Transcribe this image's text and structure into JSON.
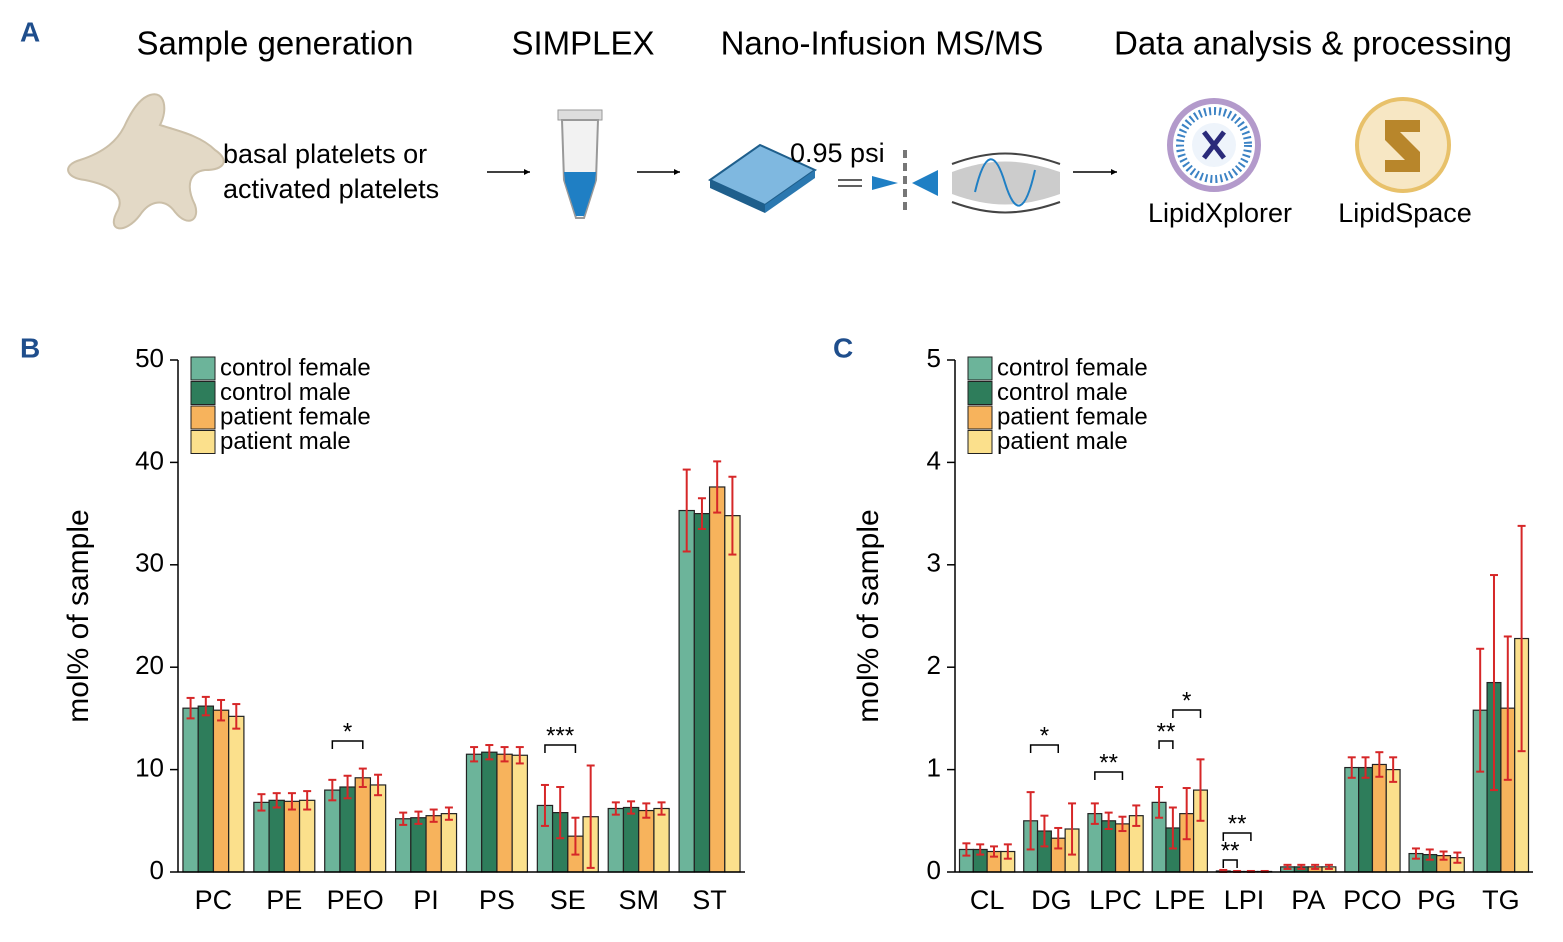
{
  "panel_a": {
    "label": "A",
    "steps": [
      "Sample generation",
      "SIMPLEX",
      "Nano-Infusion MS/MS",
      "Data analysis & processing"
    ],
    "sample_text": [
      "basal platelets or",
      "activated platelets"
    ],
    "pressure": "0.95 psi",
    "tools": [
      "LipidXplorer",
      "LipidSpace"
    ]
  },
  "chart_data": [
    {
      "type": "bar",
      "label": "B",
      "ylabel": "mol% of sample",
      "categories": [
        "PC",
        "PE",
        "PEO",
        "PI",
        "PS",
        "SE",
        "SM",
        "ST"
      ],
      "series": [
        {
          "name": "control female",
          "color": "#6cb49a",
          "values": [
            16,
            6.8,
            8.0,
            5.2,
            11.5,
            6.5,
            6.2,
            35.3
          ],
          "errors": [
            1.0,
            0.8,
            1.0,
            0.6,
            0.7,
            2.0,
            0.6,
            4.0
          ]
        },
        {
          "name": "control male",
          "color": "#2e7d5b",
          "values": [
            16.2,
            7.0,
            8.3,
            5.3,
            11.7,
            5.8,
            6.3,
            35.0
          ],
          "errors": [
            0.9,
            0.7,
            1.1,
            0.6,
            0.7,
            2.5,
            0.6,
            1.5
          ]
        },
        {
          "name": "patient female",
          "color": "#f7b35c",
          "values": [
            15.8,
            6.9,
            9.2,
            5.5,
            11.5,
            3.5,
            6.0,
            37.6
          ],
          "errors": [
            1.0,
            0.8,
            0.9,
            0.6,
            0.7,
            1.8,
            0.7,
            2.5
          ]
        },
        {
          "name": "patient male",
          "color": "#fbe08c",
          "values": [
            15.2,
            7.0,
            8.5,
            5.7,
            11.4,
            5.4,
            6.2,
            34.8
          ],
          "errors": [
            1.2,
            0.9,
            1.0,
            0.6,
            0.8,
            5.0,
            0.6,
            3.8
          ]
        }
      ],
      "annotations": [
        "*",
        "***"
      ],
      "ylim": [
        0,
        50
      ],
      "yticks": [
        0,
        10,
        20,
        30,
        40,
        50
      ],
      "legend": "upper left"
    },
    {
      "type": "bar",
      "label": "C",
      "ylabel": "mol% of sample",
      "categories": [
        "CL",
        "DG",
        "LPC",
        "LPE",
        "LPI",
        "PA",
        "PCO",
        "PG",
        "TG"
      ],
      "series": [
        {
          "name": "control female",
          "color": "#6cb49a",
          "values": [
            0.22,
            0.5,
            0.57,
            0.68,
            0.01,
            0.05,
            1.02,
            0.18,
            1.58
          ],
          "errors": [
            0.06,
            0.28,
            0.1,
            0.15,
            0.01,
            0.02,
            0.1,
            0.05,
            0.6
          ]
        },
        {
          "name": "control male",
          "color": "#2e7d5b",
          "values": [
            0.22,
            0.4,
            0.5,
            0.43,
            0.005,
            0.05,
            1.02,
            0.17,
            1.85
          ],
          "errors": [
            0.05,
            0.15,
            0.08,
            0.2,
            0.005,
            0.02,
            0.1,
            0.05,
            1.05
          ]
        },
        {
          "name": "patient female",
          "color": "#f7b35c",
          "values": [
            0.2,
            0.33,
            0.47,
            0.57,
            0.005,
            0.05,
            1.05,
            0.16,
            1.6
          ],
          "errors": [
            0.05,
            0.1,
            0.07,
            0.25,
            0.005,
            0.02,
            0.12,
            0.04,
            0.7
          ]
        },
        {
          "name": "patient male",
          "color": "#fbe08c",
          "values": [
            0.2,
            0.42,
            0.55,
            0.8,
            0.005,
            0.05,
            1.0,
            0.14,
            2.28
          ],
          "errors": [
            0.07,
            0.25,
            0.1,
            0.3,
            0.005,
            0.02,
            0.12,
            0.05,
            1.1
          ]
        }
      ],
      "annotations": [
        "*",
        "**",
        "**",
        "*",
        "**",
        "**"
      ],
      "ylim": [
        0,
        5
      ],
      "yticks": [
        0,
        1,
        2,
        3,
        4,
        5
      ],
      "legend": "upper left"
    }
  ]
}
